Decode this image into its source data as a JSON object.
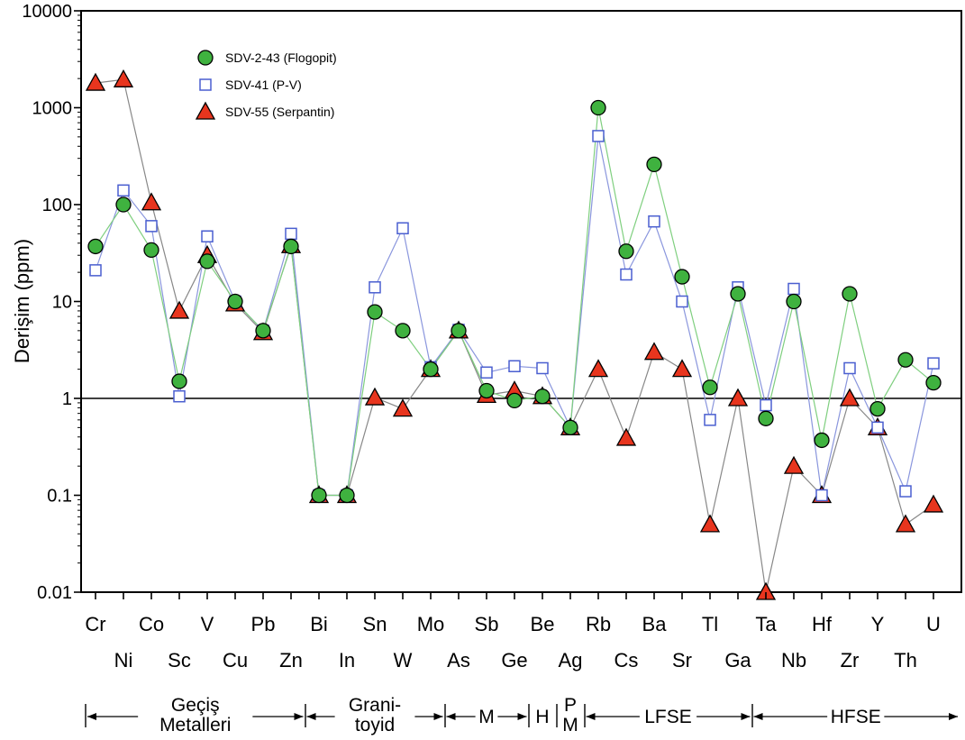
{
  "chart_data": {
    "type": "line",
    "ylabel": "Derişim (ppm)",
    "yscale": "log",
    "ylim": [
      0.01,
      10000
    ],
    "y_ticks": [
      "0.01",
      "0.1",
      "1",
      "10",
      "100",
      "1000",
      "10000"
    ],
    "reference_line": 1,
    "legend_position": "top-left",
    "categories": [
      "Cr",
      "Ni",
      "Co",
      "Sc",
      "V",
      "Cu",
      "Pb",
      "Zn",
      "Bi",
      "In",
      "Sn",
      "W",
      "Mo",
      "As",
      "Sb",
      "Ge",
      "Be",
      "Ag",
      "Rb",
      "Cs",
      "Ba",
      "Sr",
      "Tl",
      "Ga",
      "Ta",
      "Nb",
      "Hf",
      "Zr",
      "Y",
      "Th",
      "U"
    ],
    "series": [
      {
        "name": "SDV-2-43 (Flogopit)",
        "marker": "circle",
        "color": "#3fb23f",
        "line_color": "#7fcf7f",
        "values": [
          37,
          100,
          34,
          1.5,
          26,
          10,
          5,
          37,
          0.1,
          0.1,
          7.8,
          5,
          2,
          5,
          1.2,
          0.95,
          1.05,
          0.5,
          1000,
          33,
          260,
          18,
          1.3,
          12,
          0.62,
          10,
          0.37,
          12,
          0.78,
          2.5,
          1.45
        ]
      },
      {
        "name": "SDV-41 (P-V)",
        "marker": "square",
        "color": "#4a5fd0",
        "line_color": "#8a96dd",
        "values": [
          21,
          140,
          60,
          1.05,
          47,
          10,
          5,
          50,
          0.1,
          0.1,
          14,
          57,
          2.1,
          5.1,
          1.85,
          2.15,
          2.05,
          0.5,
          510,
          19,
          67,
          10,
          0.6,
          14,
          0.85,
          13.5,
          0.1,
          2.05,
          0.5,
          0.11,
          2.3
        ]
      },
      {
        "name": "SDV-55 (Serpantin)",
        "marker": "triangle",
        "color": "#e8351e",
        "line_color": "#888888",
        "values": [
          1800,
          1950,
          105,
          8,
          30,
          9.5,
          4.8,
          38,
          0.1,
          0.1,
          1.02,
          0.78,
          2,
          5,
          1.08,
          1.2,
          1.05,
          0.5,
          2,
          0.39,
          3,
          2,
          0.05,
          1,
          0.01,
          0.2,
          0.1,
          1,
          0.5,
          0.05,
          0.08
        ]
      }
    ],
    "groups": [
      {
        "label": "Geçiş\nMetalleri",
        "from": "Cr",
        "to": "Zn"
      },
      {
        "label": "Grani-\ntoyid",
        "from": "Bi",
        "to": "Mo"
      },
      {
        "label": "M",
        "from": "As",
        "to": "Ge"
      },
      {
        "label": "H",
        "from": "Be",
        "to": "Be"
      },
      {
        "label": "P\nM",
        "from": "Ag",
        "to": "Ag"
      },
      {
        "label": "LFSE",
        "from": "Rb",
        "to": "Ga"
      },
      {
        "label": "HFSE",
        "from": "Ta",
        "to": "U"
      }
    ]
  }
}
